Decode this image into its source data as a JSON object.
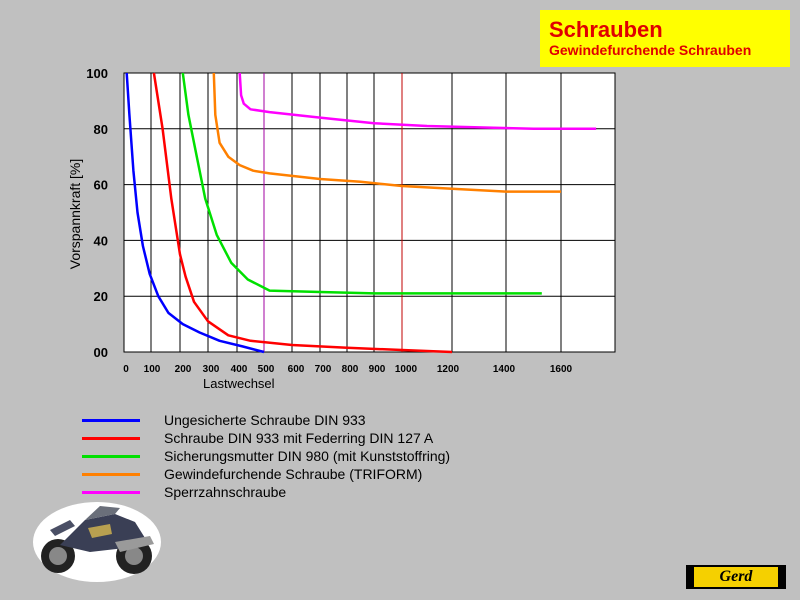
{
  "header": {
    "title": "Schrauben",
    "subtitle": "Gewindefurchende Schrauben"
  },
  "logo": {
    "text": "Gerd"
  },
  "chart_data": {
    "type": "line",
    "xlabel": "Lastwechsel",
    "ylabel": "Vorspannkraft [%]",
    "ylim": [
      0,
      100
    ],
    "grid": true,
    "legend_position": "bottom-left",
    "y_ticks": [
      "00",
      "20",
      "40",
      "60",
      "80",
      "100"
    ],
    "x_ticks_lower": [
      "0",
      "100",
      "200",
      "300",
      "400",
      "500",
      "600",
      "700",
      "800",
      "900",
      "1000",
      "1200"
    ],
    "x_ticks_upper": [
      "1400",
      "1600"
    ],
    "series": [
      {
        "name": "Ungesicherte Schraube DIN 933",
        "color": "#0000ff",
        "points": [
          [
            10,
            100
          ],
          [
            20,
            85
          ],
          [
            35,
            65
          ],
          [
            50,
            50
          ],
          [
            70,
            38
          ],
          [
            95,
            28
          ],
          [
            125,
            20
          ],
          [
            160,
            14
          ],
          [
            210,
            10
          ],
          [
            270,
            7
          ],
          [
            340,
            4
          ],
          [
            420,
            2
          ],
          [
            500,
            0
          ]
        ]
      },
      {
        "name": "Schraube DIN 933 mit Federring DIN 127 A",
        "color": "#ff0000",
        "points": [
          [
            110,
            100
          ],
          [
            140,
            80
          ],
          [
            170,
            55
          ],
          [
            200,
            35
          ],
          [
            220,
            27
          ],
          [
            250,
            18
          ],
          [
            300,
            11
          ],
          [
            370,
            6
          ],
          [
            450,
            4
          ],
          [
            600,
            2.5
          ],
          [
            800,
            1.5
          ],
          [
            1000,
            0.7
          ],
          [
            1200,
            0
          ]
        ]
      },
      {
        "name": "Sicherungsmutter DIN 980 (mit Kunststoffring)",
        "color": "#00e000",
        "points": [
          [
            210,
            100
          ],
          [
            230,
            85
          ],
          [
            260,
            70
          ],
          [
            290,
            55
          ],
          [
            330,
            42
          ],
          [
            380,
            32
          ],
          [
            440,
            26
          ],
          [
            520,
            22
          ],
          [
            700,
            21.5
          ],
          [
            900,
            21
          ],
          [
            1200,
            21
          ],
          [
            1530,
            21
          ]
        ]
      },
      {
        "name": "Gewindefurchende Schraube (TRIFORM)",
        "color": "#ff8000",
        "points": [
          [
            320,
            100
          ],
          [
            325,
            85
          ],
          [
            340,
            75
          ],
          [
            370,
            70
          ],
          [
            410,
            67
          ],
          [
            460,
            65
          ],
          [
            520,
            64
          ],
          [
            700,
            62
          ],
          [
            850,
            61
          ],
          [
            1000,
            59.5
          ],
          [
            1200,
            58.5
          ],
          [
            1400,
            57.5
          ],
          [
            1600,
            57.5
          ]
        ]
      },
      {
        "name": "Sperrzahnschraube",
        "color": "#ff00ff",
        "points": [
          [
            410,
            100
          ],
          [
            415,
            92
          ],
          [
            425,
            89
          ],
          [
            450,
            87
          ],
          [
            520,
            86
          ],
          [
            700,
            84
          ],
          [
            900,
            82
          ],
          [
            1100,
            81
          ],
          [
            1300,
            80.5
          ],
          [
            1500,
            80
          ],
          [
            1730,
            80
          ]
        ]
      }
    ]
  }
}
